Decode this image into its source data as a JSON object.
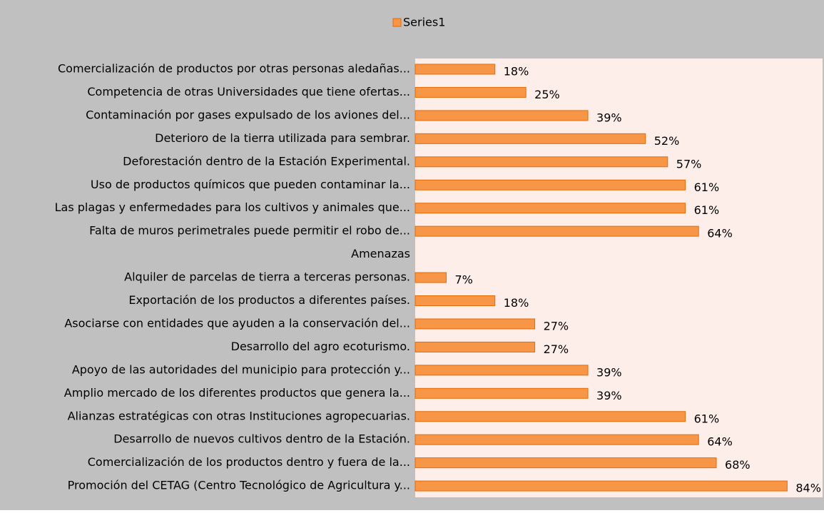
{
  "chart_data": {
    "type": "bar",
    "orientation": "horizontal",
    "categories": [
      "Comercialización de productos por otras personas aledañas...",
      "Competencia de otras Universidades que tiene ofertas...",
      "Contaminación por gases expulsado de los aviones del...",
      "Deterioro de la tierra utilizada para sembrar.",
      "Deforestación dentro de la Estación Experimental.",
      "Uso de productos químicos que pueden contaminar la...",
      "Las plagas y enfermedades para los cultivos y animales que...",
      "Falta de muros perimetrales puede permitir el robo de...",
      "Amenazas",
      "Alquiler de parcelas de tierra a terceras personas.",
      "Exportación de los productos a diferentes países.",
      "Asociarse con entidades que ayuden a la conservación del...",
      "Desarrollo del agro ecoturismo.",
      "Apoyo de las autoridades del municipio para protección y...",
      "Amplio mercado de los diferentes productos que genera la...",
      "Alianzas estratégicas con otras Instituciones agropecuarias.",
      "Desarrollo de nuevos cultivos dentro de la Estación.",
      "Comercialización de los productos dentro y fuera de la...",
      "Promoción del CETAG (Centro Tecnológico de Agricultura y..."
    ],
    "series": [
      {
        "name": "Series1",
        "color": "#f79646",
        "values": [
          18,
          25,
          39,
          52,
          57,
          61,
          61,
          64,
          null,
          7,
          18,
          27,
          27,
          39,
          39,
          61,
          64,
          68,
          84
        ],
        "value_labels": [
          "18%",
          "25%",
          "39%",
          "52%",
          "57%",
          "61%",
          "61%",
          "64%",
          null,
          "7%",
          "18%",
          "27%",
          "27%",
          "39%",
          "39%",
          "61%",
          "64%",
          "68%",
          "84%"
        ]
      }
    ],
    "xlim": [
      0,
      92
    ],
    "legend": "top"
  }
}
